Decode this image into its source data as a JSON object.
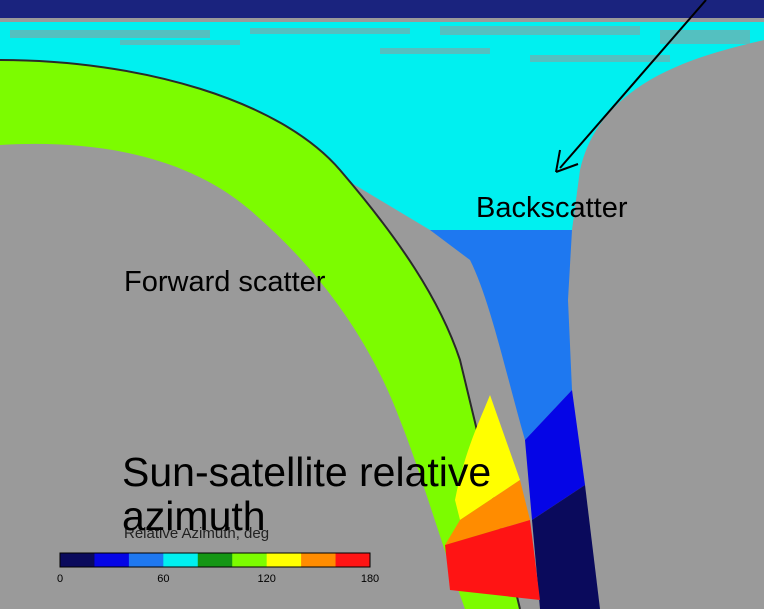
{
  "labels": {
    "backscatter": "Backscatter",
    "forward_scatter": "Forward scatter",
    "sun_satellite": "Sun-satellite relative azimuth",
    "colorbar_title": "Relative Azimuth,  deg"
  },
  "colorbar": {
    "min": 0,
    "max": 180,
    "ticks": [
      "0",
      "60",
      "120",
      "180"
    ],
    "bins": [
      {
        "from": 0,
        "to": 20,
        "color": "#0a0a5c"
      },
      {
        "from": 20,
        "to": 40,
        "color": "#0505e6"
      },
      {
        "from": 40,
        "to": 60,
        "color": "#1e78f0"
      },
      {
        "from": 60,
        "to": 80,
        "color": "#00f0f0"
      },
      {
        "from": 80,
        "to": 100,
        "color": "#149614"
      },
      {
        "from": 100,
        "to": 120,
        "color": "#7cfc00"
      },
      {
        "from": 120,
        "to": 140,
        "color": "#ffff00"
      },
      {
        "from": 140,
        "to": 160,
        "color": "#ff8c00"
      },
      {
        "from": 160,
        "to": 180,
        "color": "#ff1414"
      }
    ]
  },
  "colors": {
    "background": "#9a9a9a",
    "forward_scatter": "#7cfc00",
    "backscatter": "#00f0f0",
    "top_band": "#1a237e"
  }
}
